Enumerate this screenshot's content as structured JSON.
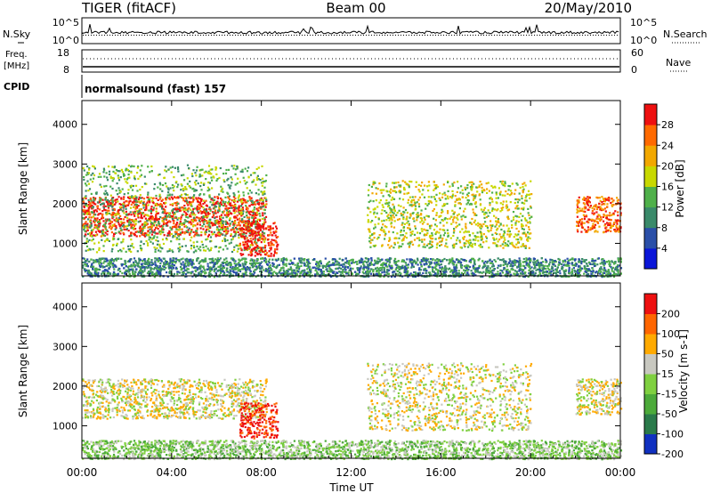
{
  "header": {
    "station": "TIGER (fitACF)",
    "beam": "Beam 00",
    "date": "20/May/2010"
  },
  "noise_panel": {
    "left_label": "N.Sky",
    "right_label": "N.Search",
    "ticks": [
      "10^5",
      "10^0"
    ]
  },
  "freq_panel": {
    "left_label_1": "Freq.",
    "left_label_2": "[MHz]",
    "left_ticks": [
      "18",
      "8"
    ],
    "right_label": "Nave",
    "right_ticks": [
      "60",
      "0"
    ]
  },
  "cpid": {
    "label": "CPID",
    "program": "normalsound (fast) 157"
  },
  "axes": {
    "xlabel": "Time UT",
    "ylabel": "Slant Range [km]",
    "xticks": [
      "00:00",
      "04:00",
      "08:00",
      "12:00",
      "16:00",
      "20:00",
      "00:00"
    ],
    "yticks": [
      "1000",
      "2000",
      "3000",
      "4000"
    ]
  },
  "chart_data": [
    {
      "type": "heatmap",
      "title": "",
      "xlabel": "Time UT",
      "ylabel": "Slant Range [km]",
      "x_range_hours": [
        0,
        24
      ],
      "y_range_km": [
        180,
        4600
      ],
      "colorbar": {
        "label": "Power [dB]",
        "ticks": [
          "4",
          "8",
          "12",
          "16",
          "20",
          "24",
          "28"
        ],
        "colors": [
          "#0a16d8",
          "#2a4fa8",
          "#3a8a6a",
          "#4fb04a",
          "#c8d800",
          "#f2a800",
          "#ff6a00",
          "#ee1010"
        ]
      },
      "bands": [
        {
          "t0": 0.0,
          "t1": 8.2,
          "r0": 1200,
          "r1": 2200,
          "level": 7
        },
        {
          "t0": 0.0,
          "t1": 8.2,
          "r0": 800,
          "r1": 3000,
          "level": 3
        },
        {
          "t0": 7.0,
          "t1": 8.7,
          "r0": 700,
          "r1": 1600,
          "level": 7
        },
        {
          "t0": 0.0,
          "t1": 24.0,
          "r0": 180,
          "r1": 650,
          "level": 2
        },
        {
          "t0": 12.7,
          "t1": 20.0,
          "r0": 900,
          "r1": 2600,
          "level": 4
        },
        {
          "t0": 22.0,
          "t1": 24.0,
          "r0": 1300,
          "r1": 2200,
          "level": 6
        }
      ]
    },
    {
      "type": "heatmap",
      "title": "",
      "xlabel": "Time UT",
      "ylabel": "Slant Range [km]",
      "x_range_hours": [
        0,
        24
      ],
      "y_range_km": [
        180,
        4600
      ],
      "colorbar": {
        "label": "Velocity [m s-1]",
        "ticks": [
          "200",
          "100",
          "50",
          "15",
          "-15",
          "-50",
          "-100",
          "-200"
        ],
        "colors": [
          "#1030c0",
          "#2a7a4a",
          "#4caa3a",
          "#7fd040",
          "#c8c8c0",
          "#ffaa00",
          "#ff6600",
          "#ee1010"
        ]
      },
      "bands": [
        {
          "t0": 0.0,
          "t1": 8.2,
          "r0": 1200,
          "r1": 2200,
          "level": 4
        },
        {
          "t0": 7.0,
          "t1": 8.7,
          "r0": 700,
          "r1": 1600,
          "level": 7
        },
        {
          "t0": 0.0,
          "t1": 24.0,
          "r0": 180,
          "r1": 650,
          "level": 3
        },
        {
          "t0": 12.7,
          "t1": 20.0,
          "r0": 900,
          "r1": 2600,
          "level": 4
        },
        {
          "t0": 22.0,
          "t1": 24.0,
          "r0": 1300,
          "r1": 2200,
          "level": 4
        }
      ]
    }
  ]
}
